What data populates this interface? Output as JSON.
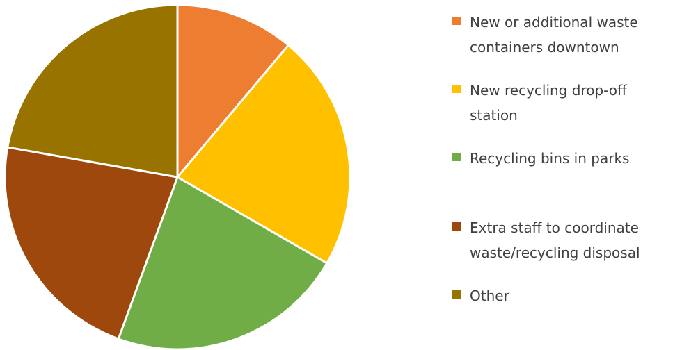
{
  "chart_data": {
    "type": "pie",
    "title": "",
    "start_angle_deg": 0,
    "direction": "clockwise",
    "legend_position": "right",
    "slices": [
      {
        "label": "New or additional waste\ncontainers downtown",
        "value": 11,
        "color": "#ED7D31"
      },
      {
        "label": "New recycling drop-off\nstation",
        "value": 22,
        "color": "#FFC000"
      },
      {
        "label": "Recycling bins in parks",
        "value": 22,
        "color": "#70AD47"
      },
      {
        "label": "Extra staff to coordinate\nwaste/recycling disposal",
        "value": 22,
        "color": "#9E480E"
      },
      {
        "label": "Other",
        "value": 22,
        "color": "#997300"
      }
    ]
  }
}
